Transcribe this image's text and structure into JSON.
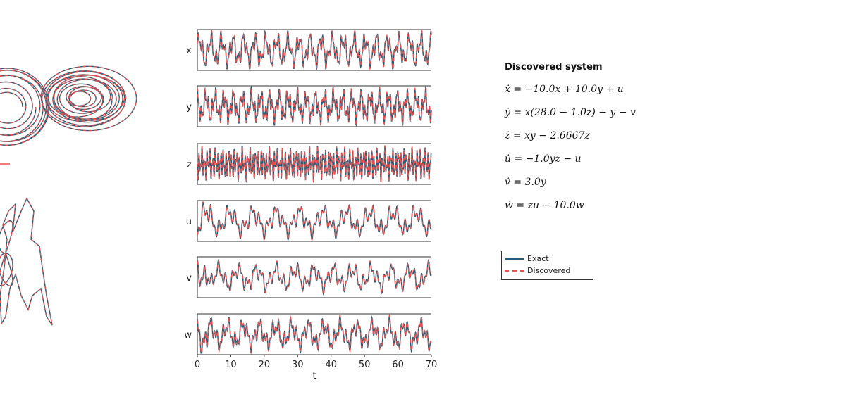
{
  "chart_data": [
    {
      "type": "line",
      "description_visible": "phase portrait panels (cropped at left edge)",
      "series": [
        {
          "name": "Exact",
          "color": "#2a5d7a"
        },
        {
          "name": "Discovered",
          "color": "#f0504a"
        }
      ]
    },
    {
      "type": "line",
      "xlabel": "t",
      "xlim": [
        0,
        70
      ],
      "xticks": [
        "0",
        "10",
        "20",
        "30",
        "40",
        "50",
        "60",
        "70"
      ],
      "panels": [
        {
          "ylabel": "x"
        },
        {
          "ylabel": "y"
        },
        {
          "ylabel": "z"
        },
        {
          "ylabel": "u"
        },
        {
          "ylabel": "v"
        },
        {
          "ylabel": "w"
        }
      ],
      "series": [
        {
          "name": "Exact",
          "color": "#2a5d7a",
          "style": "solid"
        },
        {
          "name": "Discovered",
          "color": "#f0504a",
          "style": "dashed"
        }
      ],
      "legend": {
        "placement": "right",
        "entries": [
          "Exact",
          "Discovered"
        ]
      }
    }
  ],
  "equations": {
    "title": "Discovered system",
    "lines": [
      "ẋ = −10.0x + 10.0y + u",
      "ẏ = x(28.0 − 1.0z) − y − v",
      "ż = xy − 2.6667z",
      "u̇ = −1.0yz − u",
      "v̇ = 3.0y",
      "ẇ = zu − 10.0w"
    ]
  },
  "legend": {
    "exact": "Exact",
    "discovered": "Discovered"
  }
}
